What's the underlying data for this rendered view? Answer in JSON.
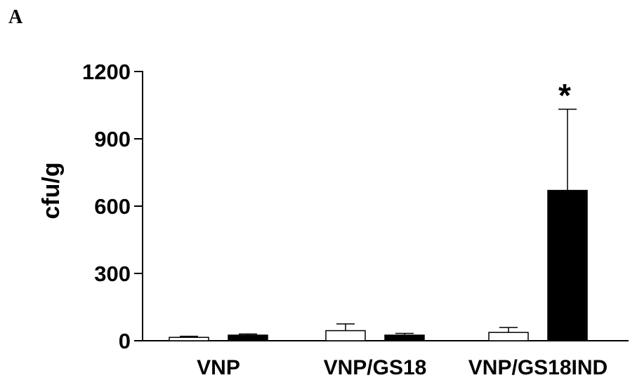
{
  "panel_label": "A",
  "chart_data": {
    "type": "bar",
    "categories": [
      "VNP",
      "VNP/GS18",
      "VNP/GS18IND"
    ],
    "ylabel": "cfu/g",
    "xlabel": "",
    "ylim": [
      0,
      1200
    ],
    "yticks": [
      0,
      300,
      600,
      900,
      1200
    ],
    "grid": false,
    "series": [
      {
        "fill": "#ffffff",
        "values": [
          15,
          45,
          37
        ],
        "errors": [
          5,
          30,
          22
        ]
      },
      {
        "fill": "#000000",
        "values": [
          25,
          25,
          670
        ],
        "errors": [
          5,
          8,
          362
        ]
      }
    ],
    "annotations": [
      {
        "text": "*",
        "category": "VNP/GS18IND",
        "series": 1
      }
    ]
  }
}
